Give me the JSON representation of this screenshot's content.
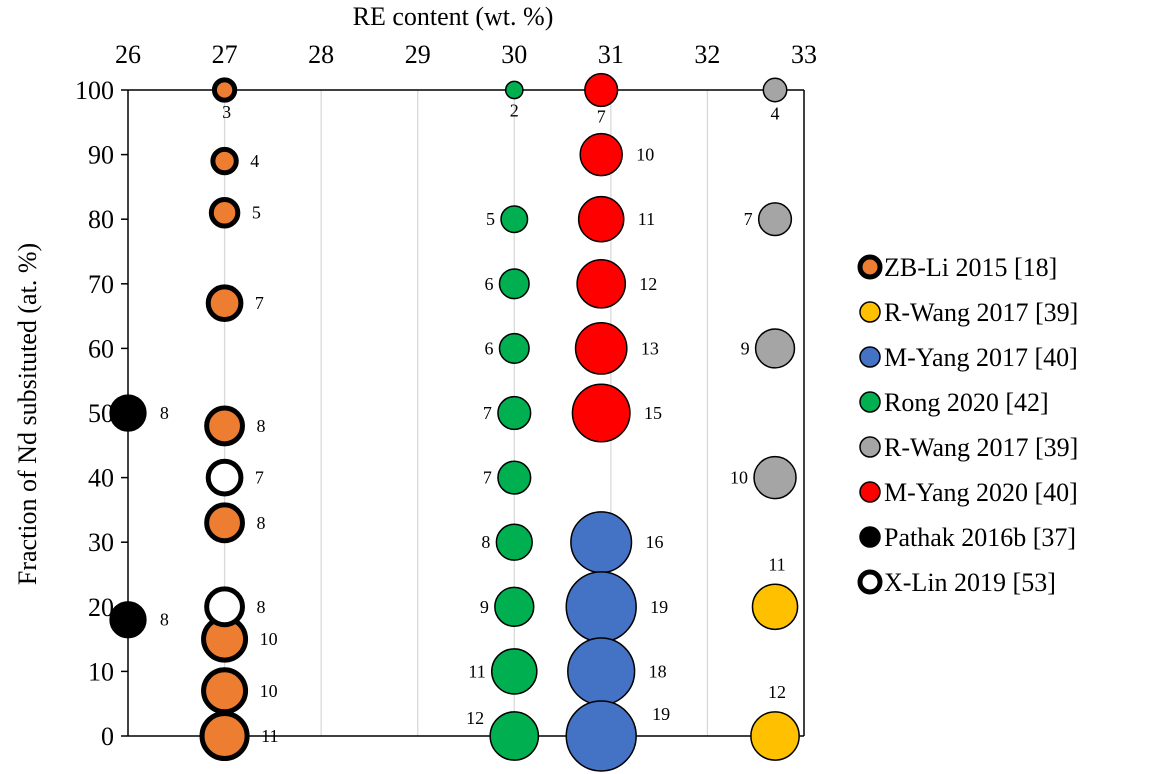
{
  "chart_data": {
    "type": "bubble",
    "xlabel": "RE content (wt. %)",
    "ylabel": "Fraction of Nd subsituted (at. %)",
    "xlim": [
      26,
      33
    ],
    "ylim": [
      0,
      100
    ],
    "x_ticks": [
      "26",
      "27",
      "28",
      "29",
      "30",
      "31",
      "32",
      "33"
    ],
    "y_ticks": [
      "0",
      "10",
      "20",
      "30",
      "40",
      "50",
      "60",
      "70",
      "80",
      "90",
      "100"
    ],
    "x_axis_position": "top",
    "grid": "vertical",
    "legend_placement": "right",
    "series": [
      {
        "name": "ZB-Li 2015 [18]",
        "fill": "#ED7D31",
        "stroke": "#000000",
        "style": "thick-outline",
        "points": [
          {
            "x": 27,
            "y": 100,
            "size": 3,
            "label": "3"
          },
          {
            "x": 27,
            "y": 89,
            "size": 4,
            "label": "4"
          },
          {
            "x": 27,
            "y": 81,
            "size": 5,
            "label": "5"
          },
          {
            "x": 27,
            "y": 67,
            "size": 7,
            "label": "7"
          },
          {
            "x": 27,
            "y": 48,
            "size": 8,
            "label": "8"
          },
          {
            "x": 27,
            "y": 33,
            "size": 8,
            "label": "8"
          },
          {
            "x": 27,
            "y": 15,
            "size": 10,
            "label": "10"
          },
          {
            "x": 27,
            "y": 7,
            "size": 10,
            "label": "10"
          },
          {
            "x": 27,
            "y": 0,
            "size": 11,
            "label": "11"
          }
        ]
      },
      {
        "name": "R-Wang 2017 [39]",
        "fill": "#FFC000",
        "stroke": "#000000",
        "style": "thin-outline",
        "points": [
          {
            "x": 32.7,
            "y": 20,
            "size": 11,
            "label": "11"
          },
          {
            "x": 32.7,
            "y": 0,
            "size": 12,
            "label": "12"
          }
        ]
      },
      {
        "name": "M-Yang 2017 [40]",
        "fill": "#4472C4",
        "stroke": "#000000",
        "style": "thin-outline",
        "points": [
          {
            "x": 30.9,
            "y": 30,
            "size": 16,
            "label": "16"
          },
          {
            "x": 30.9,
            "y": 20,
            "size": 19,
            "label": "19"
          },
          {
            "x": 30.9,
            "y": 10,
            "size": 18,
            "label": "18"
          },
          {
            "x": 30.9,
            "y": 0,
            "size": 19,
            "label": "19"
          }
        ]
      },
      {
        "name": "Rong 2020 [42]",
        "fill": "#00B050",
        "stroke": "#000000",
        "style": "thin-outline",
        "points": [
          {
            "x": 30,
            "y": 100,
            "size": 2,
            "label": "2"
          },
          {
            "x": 30,
            "y": 80,
            "size": 5,
            "label": "5"
          },
          {
            "x": 30,
            "y": 70,
            "size": 6,
            "label": "6"
          },
          {
            "x": 30,
            "y": 60,
            "size": 6,
            "label": "6"
          },
          {
            "x": 30,
            "y": 50,
            "size": 7,
            "label": "7"
          },
          {
            "x": 30,
            "y": 40,
            "size": 7,
            "label": "7"
          },
          {
            "x": 30,
            "y": 30,
            "size": 8,
            "label": "8"
          },
          {
            "x": 30,
            "y": 20,
            "size": 9,
            "label": "9"
          },
          {
            "x": 30,
            "y": 10,
            "size": 11,
            "label": "11"
          },
          {
            "x": 30,
            "y": 0,
            "size": 12,
            "label": "12"
          }
        ]
      },
      {
        "name": "R-Wang 2017 [39]",
        "fill": "#A5A5A5",
        "stroke": "#000000",
        "style": "thin-outline",
        "points": [
          {
            "x": 32.7,
            "y": 100,
            "size": 4,
            "label": "4"
          },
          {
            "x": 32.7,
            "y": 80,
            "size": 7,
            "label": "7"
          },
          {
            "x": 32.7,
            "y": 60,
            "size": 9,
            "label": "9"
          },
          {
            "x": 32.7,
            "y": 40,
            "size": 10,
            "label": "10"
          }
        ]
      },
      {
        "name": "M-Yang 2020 [40]",
        "fill": "#FF0000",
        "stroke": "#000000",
        "style": "thin-outline",
        "points": [
          {
            "x": 30.9,
            "y": 100,
            "size": 7,
            "label": "7"
          },
          {
            "x": 30.9,
            "y": 90,
            "size": 10,
            "label": "10"
          },
          {
            "x": 30.9,
            "y": 80,
            "size": 11,
            "label": "11"
          },
          {
            "x": 30.9,
            "y": 70,
            "size": 12,
            "label": "12"
          },
          {
            "x": 30.9,
            "y": 60,
            "size": 13,
            "label": "13"
          },
          {
            "x": 30.9,
            "y": 50,
            "size": 15,
            "label": "15"
          }
        ]
      },
      {
        "name": "Pathak 2016b [37]",
        "fill": "#000000",
        "stroke": "#000000",
        "style": "thin-outline",
        "points": [
          {
            "x": 26,
            "y": 50,
            "size": 8,
            "label": "8"
          },
          {
            "x": 26,
            "y": 18,
            "size": 8,
            "label": "8"
          }
        ]
      },
      {
        "name": "X-Lin 2019 [53]",
        "fill": "#FFFFFF",
        "stroke": "#000000",
        "style": "thick-outline",
        "points": [
          {
            "x": 27,
            "y": 40,
            "size": 7,
            "label": "7"
          },
          {
            "x": 27,
            "y": 20,
            "size": 8,
            "label": "8"
          }
        ]
      }
    ]
  }
}
